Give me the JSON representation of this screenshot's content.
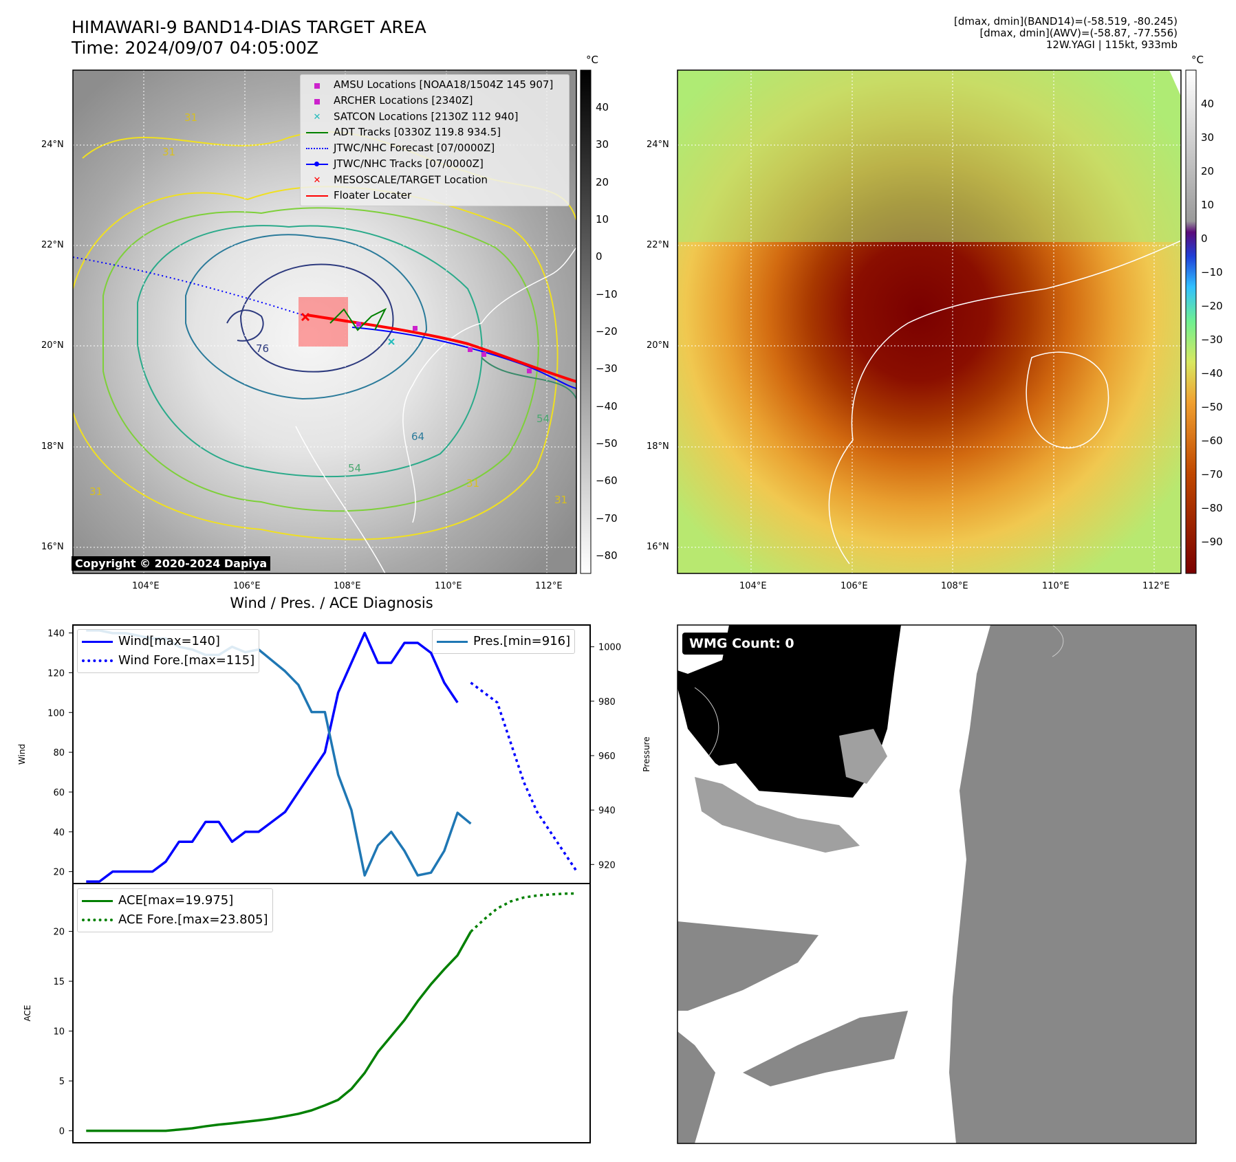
{
  "header": {
    "title_line1": "HIMAWARI-9 BAND14-DIAS TARGET AREA",
    "title_line2": "Time: 2024/09/07 04:05:00Z",
    "info_line1": "[dmax, dmin](BAND14)=(-58.519, -80.245)",
    "info_line2": "[dmax, dmin](AWV)=(-58.87, -77.556)",
    "info_line3": "12W.YAGI | 115kt, 933mb"
  },
  "map_axes": {
    "lon_ticks": [
      "104°E",
      "106°E",
      "108°E",
      "110°E",
      "112°E"
    ],
    "lat_ticks": [
      "24°N",
      "22°N",
      "20°N",
      "18°N",
      "16°N"
    ]
  },
  "ir_panel": {
    "unit": "°C",
    "colorbar_ticks": [
      "40",
      "30",
      "20",
      "10",
      "0",
      "−10",
      "−20",
      "−30",
      "−40",
      "−50",
      "−60",
      "−70",
      "−80"
    ],
    "contour_labels": [
      "31",
      "31",
      "31",
      "31",
      "54",
      "64",
      "76",
      "54",
      "31"
    ],
    "copyright": "Copyright © 2020-2024 Dapiya",
    "legend": [
      {
        "label": "AMSU Locations [NOAA18/1504Z 145 907]",
        "color": "#cc22cc",
        "kind": "square"
      },
      {
        "label": "ARCHER Locations [2340Z]",
        "color": "#cc22cc",
        "kind": "square"
      },
      {
        "label": "SATCON Locations [2130Z 112 940]",
        "color": "#22bbbb",
        "kind": "x"
      },
      {
        "label": "ADT Tracks [0330Z 119.8 934.5]",
        "color": "#008000",
        "kind": "line"
      },
      {
        "label": "JTWC/NHC Forecast [07/0000Z]",
        "color": "#0000ff",
        "kind": "dotted"
      },
      {
        "label": "JTWC/NHC Tracks [07/0000Z]",
        "color": "#0000ff",
        "kind": "line-dot"
      },
      {
        "label": "MESOSCALE/TARGET Location",
        "color": "#ff0000",
        "kind": "x"
      },
      {
        "label": "Floater Locater",
        "color": "#ff0000",
        "kind": "line"
      }
    ]
  },
  "awv_panel": {
    "unit": "°C",
    "colorbar_ticks": [
      "40",
      "30",
      "20",
      "10",
      "0",
      "−10",
      "−20",
      "−30",
      "−40",
      "−50",
      "−60",
      "−70",
      "−80",
      "−90"
    ]
  },
  "wmg_panel": {
    "label": "WMG Count: 0"
  },
  "colors": {
    "wind": "#0000ff",
    "pressure": "#1f77b4",
    "ace": "#008000"
  },
  "chart_data": [
    {
      "type": "line",
      "title": "Wind / Pres. / ACE Diagnosis",
      "ylabel": "Wind",
      "y2label": "Pressure",
      "ylim": [
        14,
        144
      ],
      "y2lim": [
        913,
        1008
      ],
      "yticks": [
        20,
        40,
        60,
        80,
        100,
        120,
        140
      ],
      "y2ticks": [
        920,
        940,
        960,
        980,
        1000
      ],
      "series": [
        {
          "name": "Wind[max=140]",
          "axis": "left",
          "style": "solid",
          "x": [
            0,
            1,
            2,
            3,
            4,
            5,
            6,
            7,
            8,
            9,
            10,
            11,
            12,
            13,
            14,
            15,
            16,
            17,
            18,
            19,
            20,
            21,
            22,
            23,
            24,
            25,
            26,
            27,
            28
          ],
          "values": [
            15,
            15,
            20,
            20,
            20,
            20,
            25,
            35,
            35,
            45,
            45,
            35,
            40,
            40,
            45,
            50,
            60,
            70,
            80,
            110,
            125,
            140,
            125,
            125,
            135,
            135,
            130,
            115,
            105
          ]
        },
        {
          "name": "Wind Fore.[max=115]",
          "axis": "left",
          "style": "dotted",
          "x": [
            29,
            30,
            31,
            32,
            33,
            34,
            35,
            36,
            37
          ],
          "values": [
            115,
            110,
            105,
            85,
            65,
            50,
            40,
            30,
            20
          ]
        },
        {
          "name": "Pres.[min=916]",
          "axis": "right",
          "style": "solid",
          "x": [
            0,
            1,
            2,
            3,
            4,
            5,
            6,
            7,
            8,
            9,
            10,
            11,
            12,
            13,
            14,
            15,
            16,
            17,
            18,
            19,
            20,
            21,
            22,
            23,
            24,
            25,
            26,
            27,
            28,
            29
          ],
          "values": [
            1006,
            1006,
            1005,
            1005,
            1004,
            1003,
            1003,
            1000,
            999,
            997,
            997,
            1000,
            998,
            999,
            995,
            991,
            986,
            976,
            976,
            953,
            940,
            916,
            927,
            932,
            925,
            916,
            917,
            925,
            939,
            935
          ]
        }
      ]
    },
    {
      "type": "line",
      "ylabel": "ACE",
      "ylim": [
        -1.2,
        24.8
      ],
      "yticks": [
        0,
        5,
        10,
        15,
        20
      ],
      "series": [
        {
          "name": "ACE[max=19.975]",
          "style": "solid",
          "x": [
            0,
            1,
            2,
            3,
            4,
            5,
            6,
            7,
            8,
            9,
            10,
            11,
            12,
            13,
            14,
            15,
            16,
            17,
            18,
            19,
            20,
            21,
            22,
            23,
            24,
            25,
            26,
            27,
            28,
            29
          ],
          "values": [
            0.0,
            0.0,
            0.0,
            0.0,
            0.0,
            0.0,
            0.0,
            0.12,
            0.25,
            0.45,
            0.62,
            0.75,
            0.9,
            1.05,
            1.22,
            1.45,
            1.7,
            2.05,
            2.55,
            3.1,
            4.2,
            5.8,
            7.9,
            9.5,
            11.1,
            13.0,
            14.7,
            16.2,
            17.6,
            19.975
          ]
        },
        {
          "name": "ACE Fore.[max=23.805]",
          "style": "dotted",
          "x": [
            29,
            30,
            31,
            32,
            33,
            34,
            35,
            36,
            37
          ],
          "values": [
            19.975,
            21.2,
            22.3,
            23.0,
            23.4,
            23.6,
            23.7,
            23.78,
            23.805
          ]
        }
      ]
    }
  ]
}
